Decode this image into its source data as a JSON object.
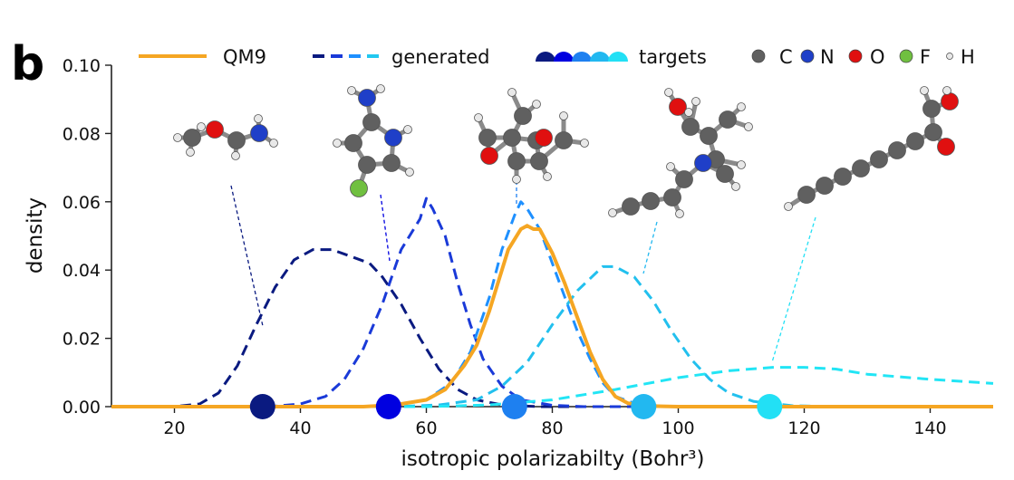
{
  "panel_label": "b",
  "chart_data": {
    "type": "line",
    "title": "",
    "xlabel": "isotropic polarizabilty (Bohr³)",
    "ylabel": "density",
    "xlim": [
      10,
      150
    ],
    "ylim": [
      0,
      0.1
    ],
    "xticks": [
      "20",
      "40",
      "60",
      "80",
      "100",
      "120",
      "140"
    ],
    "yticks": [
      "0.00",
      "0.02",
      "0.04",
      "0.06",
      "0.08",
      "0.10"
    ],
    "grid": false,
    "legend": {
      "placement": "top",
      "series_entries": [
        {
          "label": "QM9",
          "style": "solid",
          "colors": [
            "#f5a623"
          ]
        },
        {
          "label": "generated",
          "style": "dashed",
          "colors": [
            "#0a1a80",
            "#1a3ad8",
            "#1e90ff",
            "#22c8f0"
          ]
        },
        {
          "label": "targets",
          "style": "marker",
          "colors": [
            "#0a1a80",
            "#0000e0",
            "#1e80f0",
            "#22b8f0",
            "#22e0f5"
          ]
        }
      ],
      "atom_entries": [
        {
          "label": "C",
          "color": "#606060"
        },
        {
          "label": "N",
          "color": "#1f3fc8"
        },
        {
          "label": "O",
          "color": "#e01010"
        },
        {
          "label": "F",
          "color": "#70c040"
        },
        {
          "label": "H",
          "color": "#e8e8e8"
        }
      ]
    },
    "series": [
      {
        "name": "QM9",
        "style": "solid",
        "color": "#f5a623",
        "points": [
          [
            10,
            0
          ],
          [
            50,
            0
          ],
          [
            55,
            0.0005
          ],
          [
            60,
            0.002
          ],
          [
            63,
            0.005
          ],
          [
            66,
            0.012
          ],
          [
            68,
            0.018
          ],
          [
            70,
            0.028
          ],
          [
            72,
            0.04
          ],
          [
            73,
            0.046
          ],
          [
            75,
            0.052
          ],
          [
            76,
            0.053
          ],
          [
            77,
            0.052
          ],
          [
            78,
            0.052
          ],
          [
            80,
            0.045
          ],
          [
            82,
            0.036
          ],
          [
            84,
            0.026
          ],
          [
            86,
            0.016
          ],
          [
            88,
            0.008
          ],
          [
            90,
            0.003
          ],
          [
            92,
            0.001
          ],
          [
            95,
            0.0002
          ],
          [
            100,
            0
          ],
          [
            150,
            0
          ]
        ]
      },
      {
        "name": "",
        "style": "dashed",
        "color": "#0a1a80",
        "points": [
          [
            10,
            0
          ],
          [
            20,
            0
          ],
          [
            24,
            0.0008
          ],
          [
            27,
            0.004
          ],
          [
            30,
            0.012
          ],
          [
            33,
            0.024
          ],
          [
            36,
            0.035
          ],
          [
            39,
            0.043
          ],
          [
            42,
            0.046
          ],
          [
            45,
            0.046
          ],
          [
            48,
            0.044
          ],
          [
            51,
            0.042
          ],
          [
            53,
            0.038
          ],
          [
            56,
            0.03
          ],
          [
            59,
            0.02
          ],
          [
            62,
            0.011
          ],
          [
            65,
            0.005
          ],
          [
            68,
            0.002
          ],
          [
            72,
            0.0005
          ],
          [
            78,
            0
          ],
          [
            150,
            0
          ]
        ]
      },
      {
        "name": "",
        "style": "dashed",
        "color": "#1a3ad8",
        "points": [
          [
            10,
            0
          ],
          [
            35,
            0
          ],
          [
            40,
            0.0008
          ],
          [
            44,
            0.003
          ],
          [
            47,
            0.008
          ],
          [
            50,
            0.017
          ],
          [
            53,
            0.03
          ],
          [
            56,
            0.046
          ],
          [
            59,
            0.055
          ],
          [
            60,
            0.061
          ],
          [
            61,
            0.058
          ],
          [
            63,
            0.05
          ],
          [
            65,
            0.036
          ],
          [
            67,
            0.024
          ],
          [
            69,
            0.014
          ],
          [
            72,
            0.006
          ],
          [
            75,
            0.002
          ],
          [
            80,
            0.0004
          ],
          [
            85,
            0
          ],
          [
            150,
            0
          ]
        ]
      },
      {
        "name": "",
        "style": "dashed",
        "color": "#1e90ff",
        "points": [
          [
            10,
            0
          ],
          [
            50,
            0
          ],
          [
            55,
            0.0005
          ],
          [
            60,
            0.002
          ],
          [
            64,
            0.007
          ],
          [
            67,
            0.016
          ],
          [
            70,
            0.032
          ],
          [
            72,
            0.046
          ],
          [
            74,
            0.056
          ],
          [
            75,
            0.06
          ],
          [
            76,
            0.058
          ],
          [
            78,
            0.052
          ],
          [
            80,
            0.042
          ],
          [
            82,
            0.032
          ],
          [
            84,
            0.022
          ],
          [
            86,
            0.014
          ],
          [
            88,
            0.007
          ],
          [
            90,
            0.003
          ],
          [
            93,
            0.001
          ],
          [
            98,
            0
          ],
          [
            150,
            0
          ]
        ]
      },
      {
        "name": "",
        "style": "dashed",
        "color": "#22c0ee",
        "points": [
          [
            10,
            0
          ],
          [
            55,
            0
          ],
          [
            62,
            0.0005
          ],
          [
            68,
            0.002
          ],
          [
            72,
            0.006
          ],
          [
            76,
            0.013
          ],
          [
            80,
            0.024
          ],
          [
            84,
            0.034
          ],
          [
            88,
            0.041
          ],
          [
            90,
            0.041
          ],
          [
            93,
            0.038
          ],
          [
            96,
            0.031
          ],
          [
            99,
            0.022
          ],
          [
            102,
            0.014
          ],
          [
            105,
            0.008
          ],
          [
            108,
            0.004
          ],
          [
            112,
            0.0015
          ],
          [
            118,
            0.0003
          ],
          [
            125,
            0
          ],
          [
            150,
            0
          ]
        ]
      },
      {
        "name": "",
        "style": "dashed",
        "color": "#22e5f5",
        "points": [
          [
            10,
            0
          ],
          [
            60,
            0
          ],
          [
            70,
            0.0005
          ],
          [
            80,
            0.002
          ],
          [
            90,
            0.005
          ],
          [
            100,
            0.0085
          ],
          [
            108,
            0.0105
          ],
          [
            115,
            0.0115
          ],
          [
            120,
            0.0115
          ],
          [
            125,
            0.011
          ],
          [
            130,
            0.0095
          ],
          [
            140,
            0.008
          ],
          [
            150,
            0.0068
          ]
        ]
      }
    ],
    "targets": [
      {
        "x": 34,
        "color": "#0a1a80"
      },
      {
        "x": 54,
        "color": "#0000e0"
      },
      {
        "x": 74,
        "color": "#1e80f0"
      },
      {
        "x": 94.5,
        "color": "#22b8f0"
      },
      {
        "x": 114.5,
        "color": "#22e0f5"
      }
    ],
    "molecule_callouts": [
      {
        "target_x": 34,
        "color": "#0a1a80",
        "molecule": "methoxy-amine chain"
      },
      {
        "target_x": 54,
        "color": "#0000e0",
        "molecule": "fluoro-amino-pyrrole"
      },
      {
        "target_x": 74,
        "color": "#1e80f0",
        "molecule": "bicyclic epoxide"
      },
      {
        "target_x": 94.5,
        "color": "#22b8f0",
        "molecule": "hydroxy amine with alkyne chain"
      },
      {
        "target_x": 114.5,
        "color": "#22e0f5",
        "molecule": "polyyne chain diol"
      }
    ]
  }
}
